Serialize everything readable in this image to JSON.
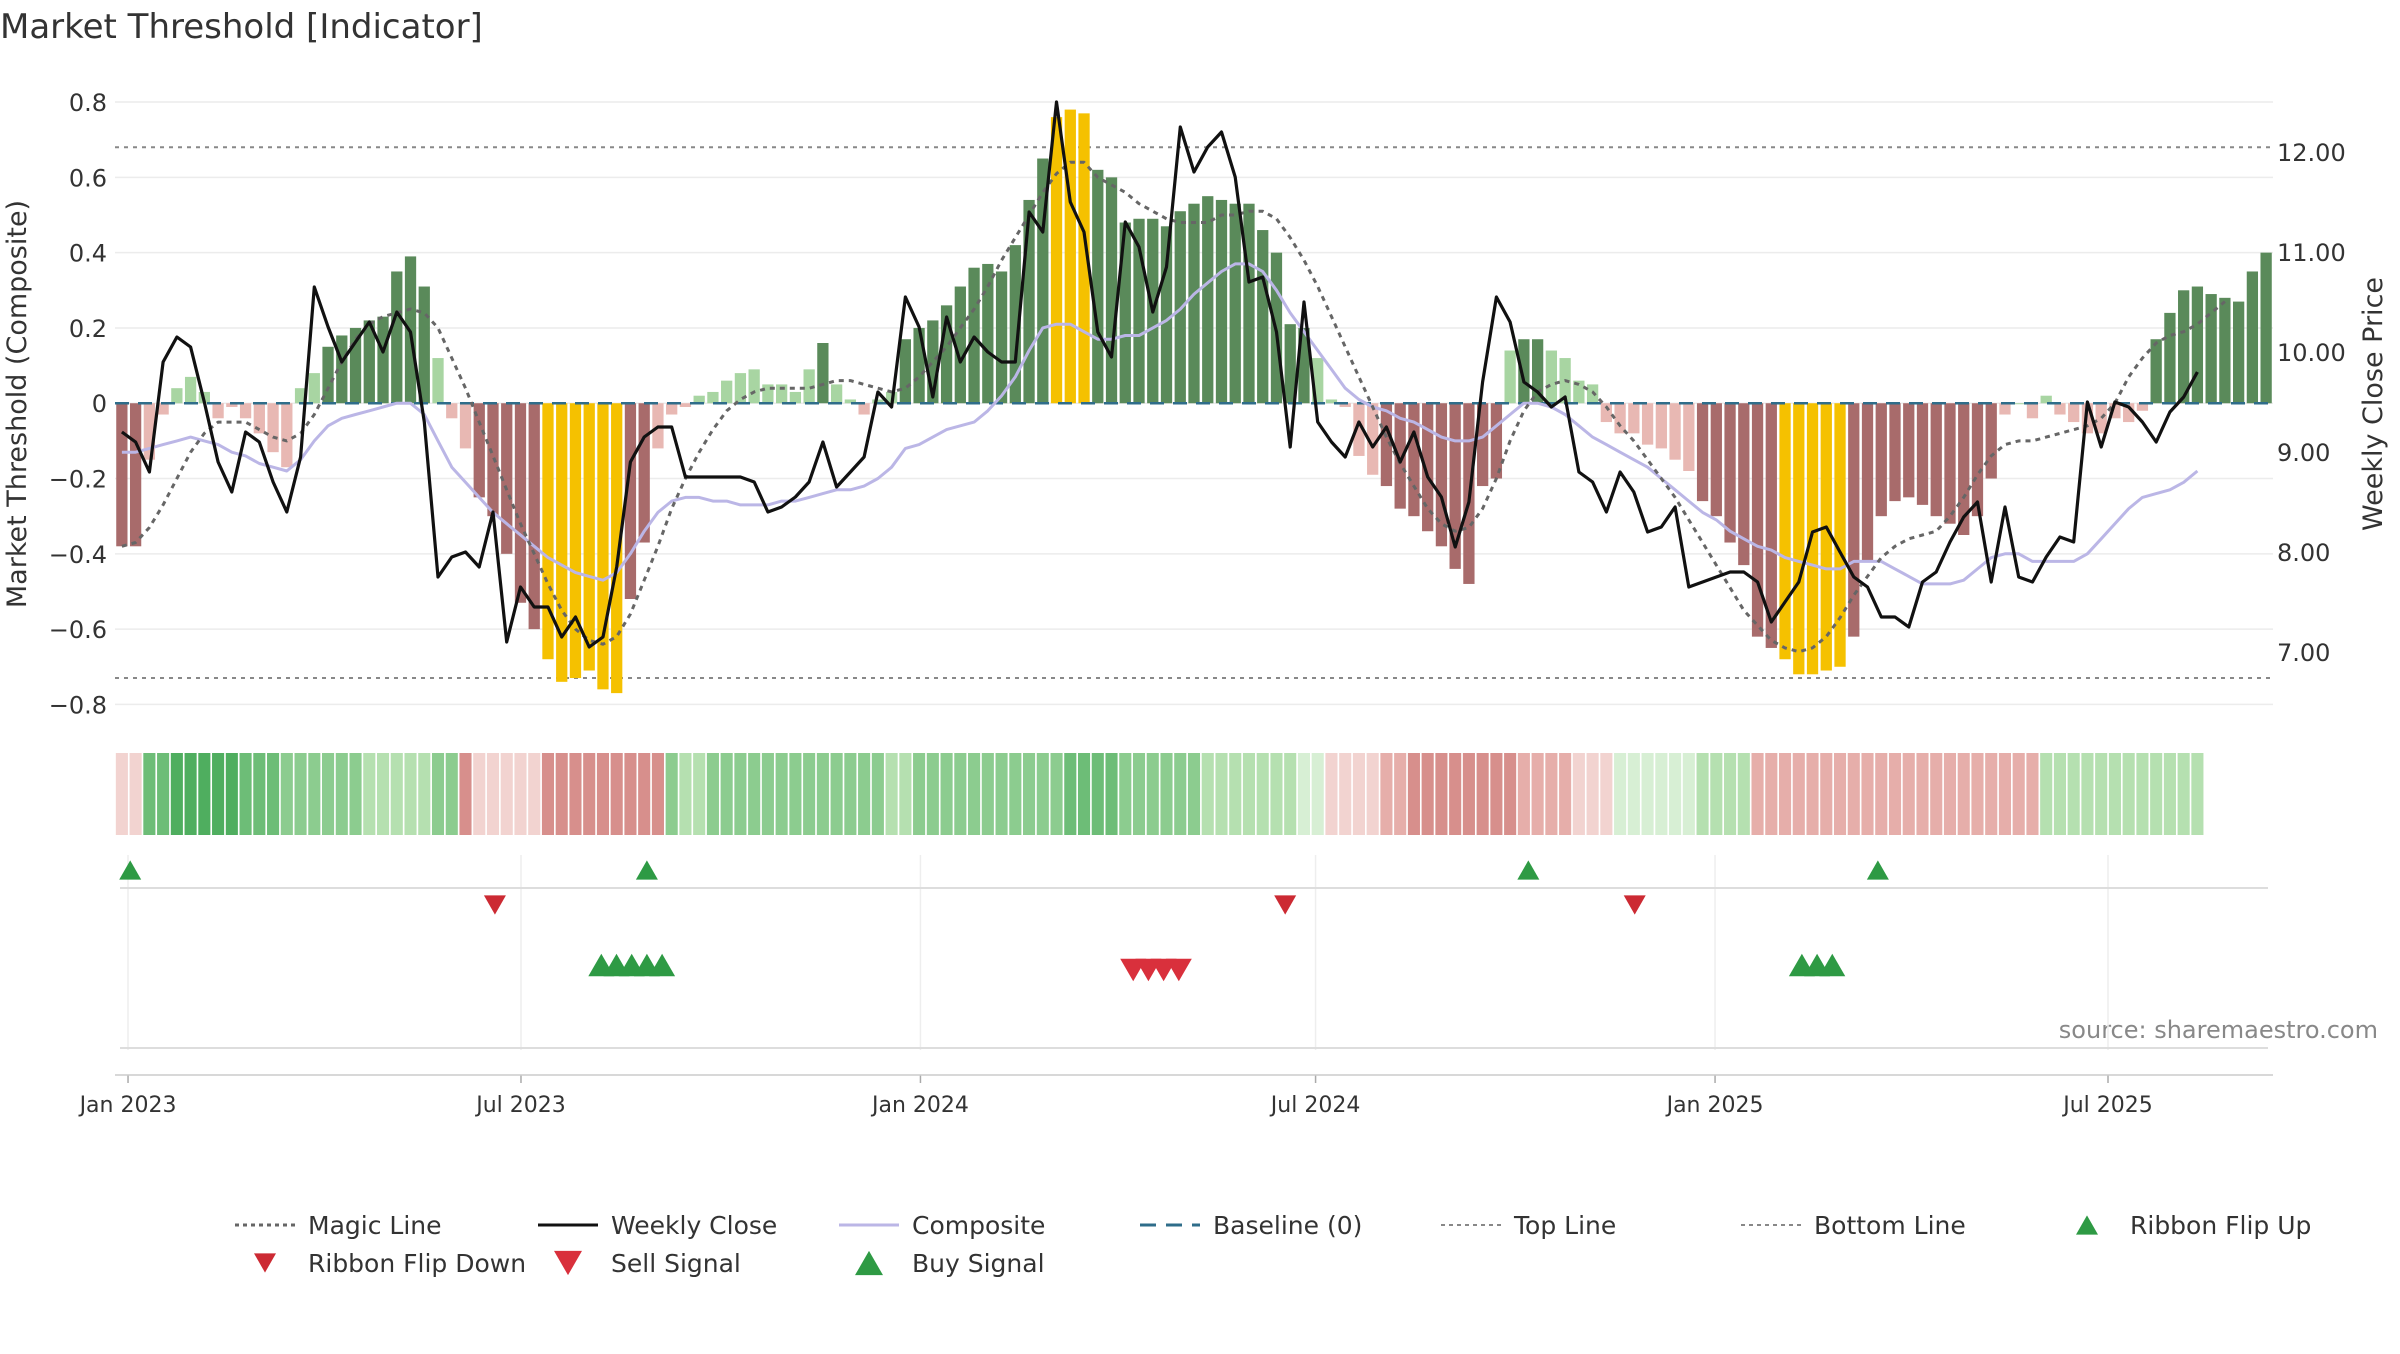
{
  "chart_data": {
    "type": "bar",
    "title": "Market Threshold [Indicator]",
    "ylabel": "Market Threshold (Composite)",
    "y2label": "Weekly Close Price",
    "source": "source: sharemaestro.com",
    "ylim": [
      -0.86,
      0.84
    ],
    "y2lim": [
      6.25,
      12.65
    ],
    "yticks": [
      0.8,
      0.6,
      0.4,
      0.2,
      0,
      -0.2,
      -0.4,
      -0.6,
      -0.8
    ],
    "ytick_labels": [
      "0.8",
      "0.6",
      "0.4",
      "0.2",
      "0",
      "−0.2",
      "−0.4",
      "−0.6",
      "−0.8"
    ],
    "y2ticks": [
      12,
      11,
      10,
      9,
      8,
      7
    ],
    "y2tick_labels": [
      "12.00",
      "11.00",
      "10.00",
      "9.00",
      "8.00",
      "7.00"
    ],
    "top_line": 0.68,
    "bottom_line": -0.73,
    "x_start": "2022-12-26",
    "x_end": "2025-09-15",
    "x_ticks": [
      "2023-01-01",
      "2023-07-01",
      "2024-01-01",
      "2024-07-01",
      "2025-01-01",
      "2025-07-01"
    ],
    "x_tick_labels": [
      "Jan 2023",
      "Jul 2023",
      "Jan 2024",
      "Jul 2024",
      "Jan 2025",
      "Jul 2025"
    ],
    "legend_position": "bottom",
    "colors": {
      "pos_strong": "#5a8a5a",
      "pos_weak": "#a8d5a2",
      "neg_strong": "#a86b6b",
      "neg_weak": "#e8b8b3",
      "extreme": "#f5c100",
      "magic": "#666666",
      "close": "#111111",
      "composite": "#bbb6e6",
      "baseline": "#2f6d8a",
      "ref_line": "#888888",
      "buy": "#2e9a44",
      "sell": "#d9303c",
      "flip_up": "#2e9a44",
      "flip_down": "#cc2a33"
    },
    "series": [
      {
        "name": "Composite",
        "kind": "bar",
        "values": [
          -0.38,
          -0.38,
          -0.15,
          -0.03,
          0.04,
          0.07,
          0.03,
          -0.04,
          -0.01,
          -0.04,
          -0.08,
          -0.13,
          -0.17,
          0.04,
          0.08,
          0.15,
          0.18,
          0.2,
          0.22,
          0.23,
          0.35,
          0.39,
          0.31,
          0.12,
          -0.04,
          -0.12,
          -0.25,
          -0.3,
          -0.4,
          -0.53,
          -0.6,
          -0.68,
          -0.74,
          -0.73,
          -0.71,
          -0.76,
          -0.77,
          -0.52,
          -0.37,
          -0.12,
          -0.03,
          -0.01,
          0.02,
          0.03,
          0.06,
          0.08,
          0.09,
          0.05,
          0.05,
          0.03,
          0.09,
          0.16,
          0.05,
          0.01,
          -0.03,
          0.01,
          0.03,
          0.17,
          0.2,
          0.22,
          0.26,
          0.31,
          0.36,
          0.37,
          0.35,
          0.42,
          0.54,
          0.65,
          0.76,
          0.78,
          0.77,
          0.62,
          0.6,
          0.48,
          0.49,
          0.49,
          0.47,
          0.51,
          0.53,
          0.55,
          0.54,
          0.53,
          0.53,
          0.46,
          0.4,
          0.21,
          0.2,
          0.12,
          0.01,
          -0.01,
          -0.14,
          -0.19,
          -0.22,
          -0.28,
          -0.3,
          -0.34,
          -0.38,
          -0.44,
          -0.48,
          -0.22,
          -0.2,
          0.14,
          0.17,
          0.17,
          0.14,
          0.12,
          0.06,
          0.05,
          -0.05,
          -0.08,
          -0.08,
          -0.11,
          -0.12,
          -0.15,
          -0.18,
          -0.26,
          -0.3,
          -0.37,
          -0.43,
          -0.62,
          -0.65,
          -0.68,
          -0.72,
          -0.72,
          -0.71,
          -0.7,
          -0.62,
          -0.42,
          -0.3,
          -0.26,
          -0.25,
          -0.27,
          -0.3,
          -0.32,
          -0.35,
          -0.3,
          -0.2,
          -0.03,
          0.0,
          -0.04,
          0.02,
          -0.03,
          -0.05,
          -0.08,
          -0.08,
          -0.04,
          -0.05,
          -0.02,
          0.17,
          0.24,
          0.3,
          0.31,
          0.29,
          0.28,
          0.27,
          0.35,
          0.4
        ]
      },
      {
        "name": "Magic Line",
        "kind": "line",
        "values": [
          -0.38,
          -0.37,
          -0.33,
          -0.27,
          -0.2,
          -0.13,
          -0.08,
          -0.05,
          -0.05,
          -0.05,
          -0.07,
          -0.09,
          -0.1,
          -0.08,
          -0.03,
          0.04,
          0.11,
          0.17,
          0.21,
          0.23,
          0.24,
          0.25,
          0.24,
          0.2,
          0.12,
          0.04,
          -0.05,
          -0.14,
          -0.23,
          -0.32,
          -0.4,
          -0.48,
          -0.55,
          -0.6,
          -0.63,
          -0.64,
          -0.62,
          -0.56,
          -0.47,
          -0.38,
          -0.28,
          -0.2,
          -0.13,
          -0.07,
          -0.02,
          0.01,
          0.03,
          0.04,
          0.04,
          0.04,
          0.04,
          0.05,
          0.06,
          0.06,
          0.05,
          0.04,
          0.03,
          0.04,
          0.07,
          0.11,
          0.15,
          0.2,
          0.25,
          0.31,
          0.38,
          0.44,
          0.5,
          0.56,
          0.61,
          0.64,
          0.64,
          0.6,
          0.58,
          0.56,
          0.53,
          0.51,
          0.49,
          0.48,
          0.48,
          0.48,
          0.5,
          0.5,
          0.51,
          0.51,
          0.49,
          0.44,
          0.38,
          0.31,
          0.23,
          0.15,
          0.07,
          -0.01,
          -0.09,
          -0.16,
          -0.22,
          -0.28,
          -0.32,
          -0.34,
          -0.33,
          -0.28,
          -0.2,
          -0.1,
          -0.02,
          0.03,
          0.05,
          0.06,
          0.05,
          0.03,
          -0.01,
          -0.06,
          -0.1,
          -0.15,
          -0.2,
          -0.25,
          -0.31,
          -0.37,
          -0.43,
          -0.49,
          -0.55,
          -0.59,
          -0.63,
          -0.65,
          -0.66,
          -0.65,
          -0.62,
          -0.57,
          -0.51,
          -0.46,
          -0.41,
          -0.38,
          -0.36,
          -0.35,
          -0.34,
          -0.3,
          -0.25,
          -0.19,
          -0.14,
          -0.11,
          -0.1,
          -0.1,
          -0.09,
          -0.08,
          -0.07,
          -0.06,
          -0.04,
          0.0,
          0.07,
          0.12,
          0.16,
          0.18,
          0.19,
          0.21,
          0.24,
          0.27
        ]
      },
      {
        "name": "Composite",
        "kind": "line",
        "values": [
          -0.13,
          -0.13,
          -0.12,
          -0.11,
          -0.1,
          -0.09,
          -0.1,
          -0.11,
          -0.13,
          -0.14,
          -0.16,
          -0.17,
          -0.18,
          -0.15,
          -0.1,
          -0.06,
          -0.04,
          -0.03,
          -0.02,
          -0.01,
          0.0,
          0.0,
          -0.03,
          -0.1,
          -0.17,
          -0.21,
          -0.25,
          -0.29,
          -0.32,
          -0.35,
          -0.38,
          -0.41,
          -0.43,
          -0.45,
          -0.46,
          -0.47,
          -0.45,
          -0.4,
          -0.34,
          -0.29,
          -0.26,
          -0.25,
          -0.25,
          -0.26,
          -0.26,
          -0.27,
          -0.27,
          -0.27,
          -0.26,
          -0.26,
          -0.25,
          -0.24,
          -0.23,
          -0.23,
          -0.22,
          -0.2,
          -0.17,
          -0.12,
          -0.11,
          -0.09,
          -0.07,
          -0.06,
          -0.05,
          -0.02,
          0.02,
          0.07,
          0.14,
          0.2,
          0.21,
          0.21,
          0.19,
          0.17,
          0.17,
          0.18,
          0.18,
          0.2,
          0.22,
          0.25,
          0.29,
          0.32,
          0.35,
          0.37,
          0.37,
          0.35,
          0.3,
          0.24,
          0.19,
          0.14,
          0.09,
          0.04,
          0.01,
          -0.01,
          -0.02,
          -0.04,
          -0.05,
          -0.07,
          -0.09,
          -0.1,
          -0.1,
          -0.09,
          -0.06,
          -0.03,
          0.0,
          0.0,
          -0.01,
          -0.03,
          -0.06,
          -0.09,
          -0.11,
          -0.13,
          -0.15,
          -0.17,
          -0.2,
          -0.23,
          -0.26,
          -0.29,
          -0.31,
          -0.34,
          -0.36,
          -0.38,
          -0.39,
          -0.41,
          -0.42,
          -0.43,
          -0.44,
          -0.44,
          -0.42,
          -0.42,
          -0.42,
          -0.44,
          -0.46,
          -0.48,
          -0.48,
          -0.48,
          -0.47,
          -0.44,
          -0.41,
          -0.4,
          -0.4,
          -0.42,
          -0.42,
          -0.42,
          -0.42,
          -0.4,
          -0.36,
          -0.32,
          -0.28,
          -0.25,
          -0.24,
          -0.23,
          -0.21,
          -0.18
        ]
      },
      {
        "name": "Weekly Close",
        "kind": "line",
        "axis": "right",
        "values": [
          9.2,
          9.1,
          8.8,
          9.9,
          10.15,
          10.05,
          9.5,
          8.9,
          8.6,
          9.2,
          9.1,
          8.7,
          8.4,
          8.95,
          10.65,
          10.25,
          9.9,
          10.1,
          10.3,
          10.0,
          10.4,
          10.2,
          9.3,
          7.75,
          7.95,
          8.0,
          7.85,
          8.4,
          7.1,
          7.65,
          7.45,
          7.45,
          7.15,
          7.35,
          7.05,
          7.15,
          7.85,
          8.9,
          9.15,
          9.25,
          9.25,
          8.75,
          8.75,
          8.75,
          8.75,
          8.75,
          8.7,
          8.4,
          8.45,
          8.55,
          8.7,
          9.1,
          8.65,
          8.8,
          8.95,
          9.6,
          9.45,
          10.55,
          10.25,
          9.55,
          10.35,
          9.9,
          10.15,
          10.0,
          9.9,
          9.9,
          11.4,
          11.2,
          12.5,
          11.5,
          11.2,
          10.2,
          9.95,
          11.3,
          11.05,
          10.4,
          10.85,
          12.25,
          11.8,
          12.05,
          12.2,
          11.75,
          10.7,
          10.75,
          10.2,
          9.05,
          10.5,
          9.3,
          9.1,
          8.95,
          9.3,
          9.05,
          9.25,
          8.9,
          9.2,
          8.75,
          8.55,
          8.05,
          8.5,
          9.7,
          10.55,
          10.3,
          9.7,
          9.6,
          9.45,
          9.55,
          8.8,
          8.7,
          8.4,
          8.8,
          8.6,
          8.2,
          8.25,
          8.45,
          7.65,
          7.7,
          7.75,
          7.8,
          7.8,
          7.7,
          7.3,
          7.5,
          7.7,
          8.2,
          8.25,
          8.0,
          7.75,
          7.65,
          7.35,
          7.35,
          7.25,
          7.7,
          7.8,
          8.1,
          8.35,
          8.5,
          7.7,
          8.45,
          7.75,
          7.7,
          7.95,
          8.15,
          8.1,
          9.5,
          9.05,
          9.5,
          9.45,
          9.3,
          9.1,
          9.4,
          9.55,
          9.8
        ]
      }
    ],
    "ribbon": [
      1,
      1,
      4,
      4,
      5,
      5,
      5,
      5,
      5,
      4,
      4,
      4,
      3,
      3,
      3,
      3,
      3,
      3,
      2,
      2,
      2,
      2,
      2,
      3,
      3,
      3,
      1,
      1,
      1,
      1,
      1,
      3,
      3,
      3,
      3,
      3,
      3,
      3,
      3,
      3,
      3,
      2,
      2,
      3,
      3,
      3,
      3,
      3,
      3,
      3,
      3,
      3,
      3,
      3,
      3,
      3,
      2,
      2,
      3,
      3,
      3,
      3,
      3,
      3,
      3,
      3,
      3,
      3,
      3,
      4,
      4,
      4,
      4,
      3,
      3,
      3,
      3,
      3,
      3,
      2,
      2,
      2,
      2,
      2,
      2,
      2,
      1,
      1,
      1,
      1,
      1,
      1,
      2,
      2,
      3,
      3,
      3,
      3,
      3,
      3,
      3,
      3,
      2,
      2,
      2,
      2,
      1,
      1,
      1,
      1,
      1,
      1,
      1,
      1,
      1,
      2,
      2,
      2,
      2,
      2,
      2,
      2,
      2,
      2,
      2,
      2,
      2,
      2,
      2,
      2,
      2,
      2,
      2,
      2,
      2,
      2,
      2,
      2,
      2,
      2,
      2,
      2,
      2,
      2,
      2,
      2,
      2,
      2,
      2,
      2,
      2,
      2
    ],
    "ribbon_encoding": "sign and strength per week: 1 = weak, 2 = moderate, 3 = strong, 4 = very strong, 5 = strongest",
    "ribbon_sign": [
      -1,
      -1,
      1,
      1,
      1,
      1,
      1,
      1,
      1,
      1,
      1,
      1,
      1,
      1,
      1,
      1,
      1,
      1,
      1,
      1,
      1,
      1,
      1,
      1,
      1,
      -1,
      -1,
      -1,
      -1,
      -1,
      -1,
      -1,
      -1,
      -1,
      -1,
      -1,
      -1,
      -1,
      -1,
      -1,
      1,
      1,
      1,
      1,
      1,
      1,
      1,
      1,
      1,
      1,
      1,
      1,
      1,
      1,
      1,
      1,
      1,
      1,
      1,
      1,
      1,
      1,
      1,
      1,
      1,
      1,
      1,
      1,
      1,
      1,
      1,
      1,
      1,
      1,
      1,
      1,
      1,
      1,
      1,
      1,
      1,
      1,
      1,
      1,
      1,
      1,
      1,
      1,
      -1,
      -1,
      -1,
      -1,
      -1,
      -1,
      -1,
      -1,
      -1,
      -1,
      -1,
      -1,
      -1,
      -1,
      -1,
      -1,
      -1,
      -1,
      -1,
      -1,
      -1,
      1,
      1,
      1,
      1,
      1,
      1,
      1,
      1,
      1,
      1,
      -1,
      -1,
      -1,
      -1,
      -1,
      -1,
      -1,
      -1,
      -1,
      -1,
      -1,
      -1,
      -1,
      -1,
      -1,
      -1,
      -1,
      -1,
      -1,
      -1,
      -1,
      1,
      1,
      1,
      1,
      1,
      1,
      1,
      1,
      1,
      1,
      1,
      1,
      1,
      1,
      1,
      1,
      1,
      1,
      1,
      1,
      1,
      1
    ],
    "ribbon_flip_up": [
      "2023-01-02",
      "2023-08-28",
      "2024-10-07",
      "2025-03-17"
    ],
    "ribbon_flip_down": [
      "2023-06-19",
      "2024-06-17",
      "2024-11-25"
    ],
    "buy_signals": [
      "2023-08-07",
      "2023-08-14",
      "2023-08-21",
      "2023-08-28",
      "2023-09-04",
      "2025-02-10",
      "2025-02-17",
      "2025-02-24"
    ],
    "sell_signals": [
      "2024-04-08",
      "2024-04-15",
      "2024-04-22",
      "2024-04-29"
    ],
    "legend": [
      {
        "label": "Magic Line",
        "type": "dotted",
        "color": "#666666"
      },
      {
        "label": "Weekly Close",
        "type": "solid",
        "color": "#111111"
      },
      {
        "label": "Composite",
        "type": "solid",
        "color": "#bbb6e6"
      },
      {
        "label": "Baseline (0)",
        "type": "dashed",
        "color": "#2f6d8a"
      },
      {
        "label": "Top Line",
        "type": "dotted-light",
        "color": "#888888"
      },
      {
        "label": "Bottom Line",
        "type": "dotted-light",
        "color": "#888888"
      },
      {
        "label": "Ribbon Flip Up",
        "type": "triangle-up",
        "color": "#2e9a44"
      },
      {
        "label": "Ribbon Flip Down",
        "type": "triangle-down",
        "color": "#cc2a33"
      },
      {
        "label": "Sell Signal",
        "type": "triangle-down-big",
        "color": "#d9303c"
      },
      {
        "label": "Buy Signal",
        "type": "triangle-up-big",
        "color": "#2e9a44"
      }
    ]
  }
}
